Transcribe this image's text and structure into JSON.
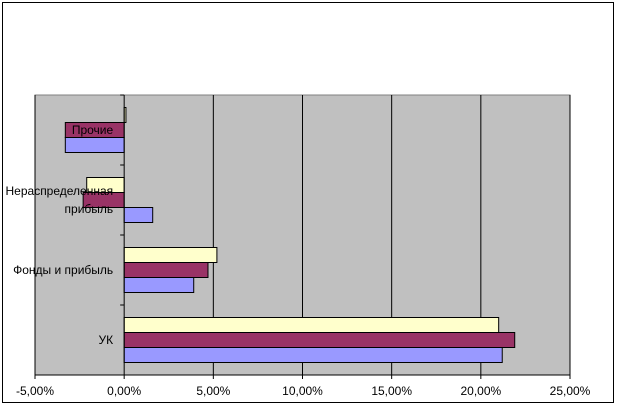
{
  "chart_data": {
    "type": "bar",
    "orientation": "horizontal",
    "categories": [
      "УК",
      "Фонды и прибыль",
      "Нераспределенная прибыль",
      "Прочие"
    ],
    "category_label_lines": [
      [
        "УК"
      ],
      [
        "Фонды и прибыль"
      ],
      [
        "Нераспределенная",
        "прибыль"
      ],
      [
        "Прочие"
      ]
    ],
    "series": [
      {
        "values": [
          21.2,
          3.9,
          1.6,
          -3.3
        ]
      },
      {
        "values": [
          21.9,
          4.7,
          -2.3,
          -3.3
        ]
      },
      {
        "values": [
          21.0,
          5.2,
          -2.1,
          0.1
        ]
      }
    ],
    "colors": [
      "#9999ff",
      "#993366",
      "#ffffcc"
    ],
    "plot_background": "#c0c0c0",
    "xlim": [
      -5,
      25
    ],
    "x_ticks": [
      -5,
      0,
      5,
      10,
      15,
      20,
      25
    ],
    "x_tick_labels": [
      "-5,00%",
      "0,00%",
      "5,00%",
      "10,00%",
      "15,00%",
      "20,00%",
      "25,00%"
    ],
    "grid": "vertical major gridlines",
    "legend": "none",
    "title": "",
    "xlabel": "",
    "ylabel": ""
  }
}
